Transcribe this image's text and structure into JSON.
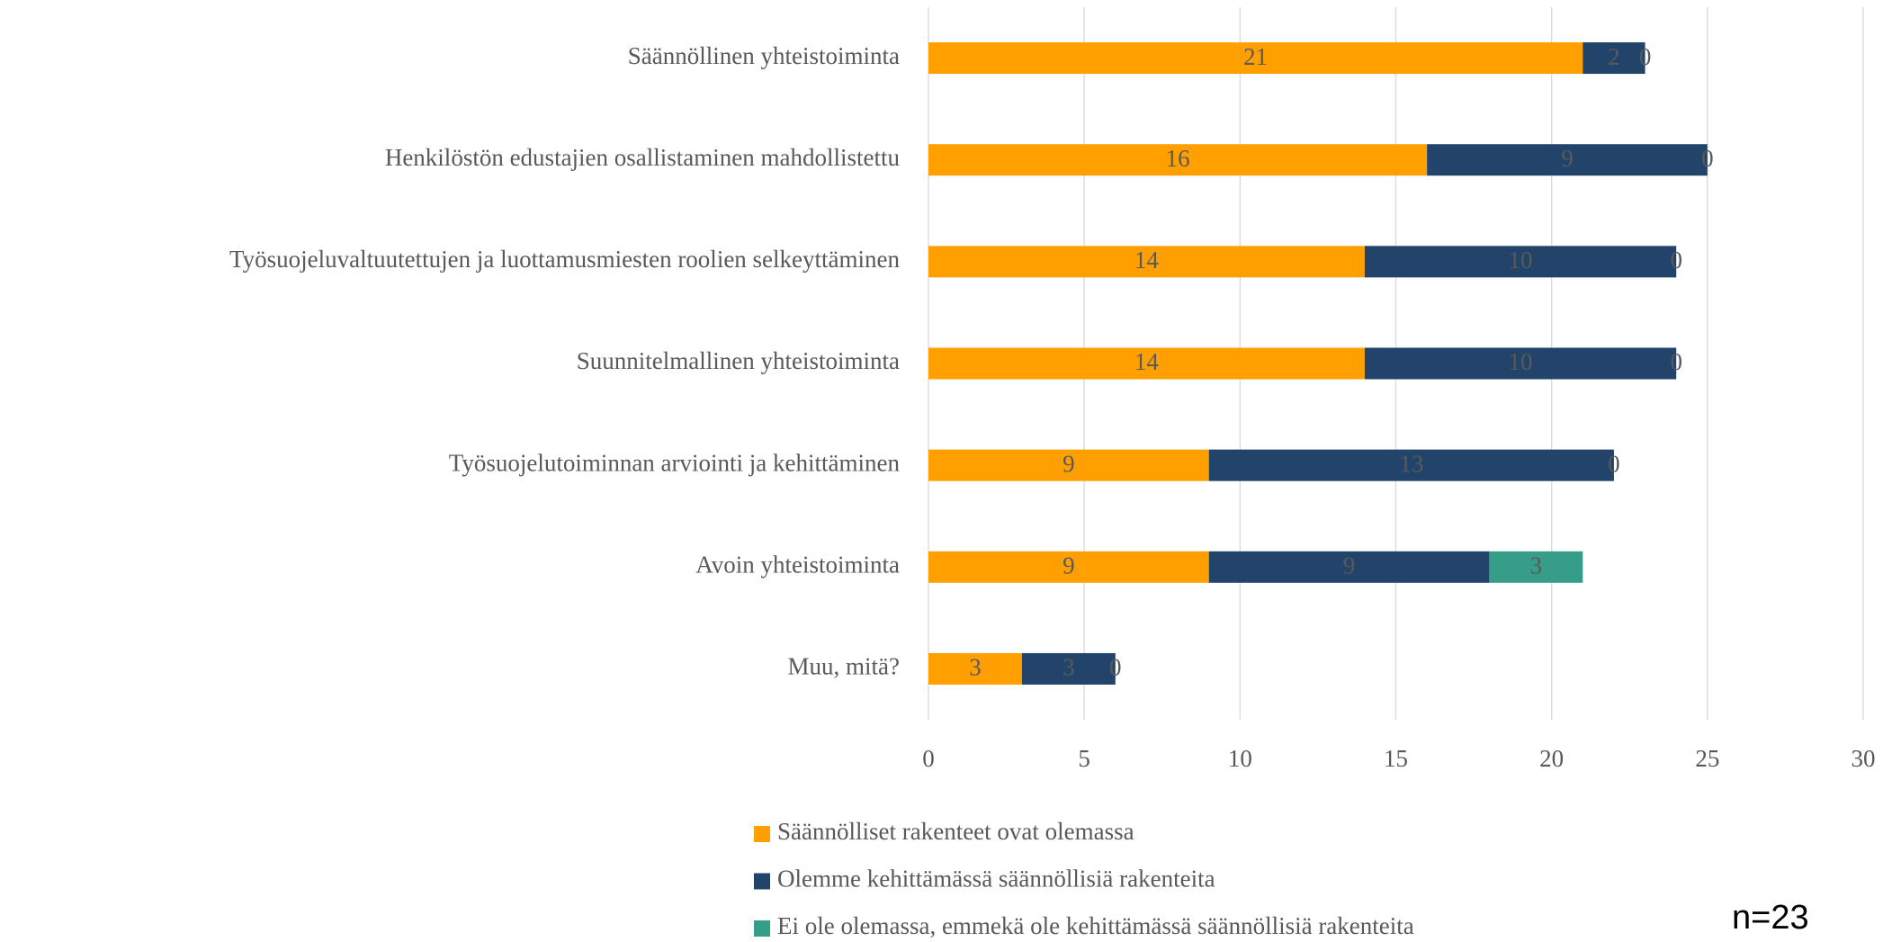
{
  "chart_data": {
    "type": "stacked_barh",
    "categories": [
      "Säännöllinen yhteistoiminta",
      "Henkilöstön edustajien osallistaminen mahdollistettu",
      "Työsuojeluvaltuutettujen ja luottamusmiesten roolien selkeyttäminen",
      "Suunnitelmallinen yhteistoiminta",
      "Työsuojelutoiminnan arviointi ja kehittäminen",
      "Avoin yhteistoiminta",
      "Muu, mitä?"
    ],
    "series": [
      {
        "name": "Säännölliset rakenteet ovat olemassa",
        "color": "#ffa000",
        "values": [
          21,
          16,
          14,
          14,
          9,
          9,
          3
        ]
      },
      {
        "name": "Olemme kehittämässä säännöllisiä rakenteita",
        "color": "#23446a",
        "values": [
          2,
          9,
          10,
          10,
          13,
          9,
          3
        ]
      },
      {
        "name": "Ei ole olemassa, emmekä ole kehittämässä säännöllisiä rakenteita",
        "color": "#369e88",
        "values": [
          0,
          0,
          0,
          0,
          0,
          3,
          0
        ]
      }
    ],
    "xlim": [
      0,
      30
    ],
    "xticks": [
      0,
      5,
      10,
      15,
      20,
      25,
      30
    ],
    "grid": true,
    "legend": "bottom",
    "annotation": "n=23"
  }
}
